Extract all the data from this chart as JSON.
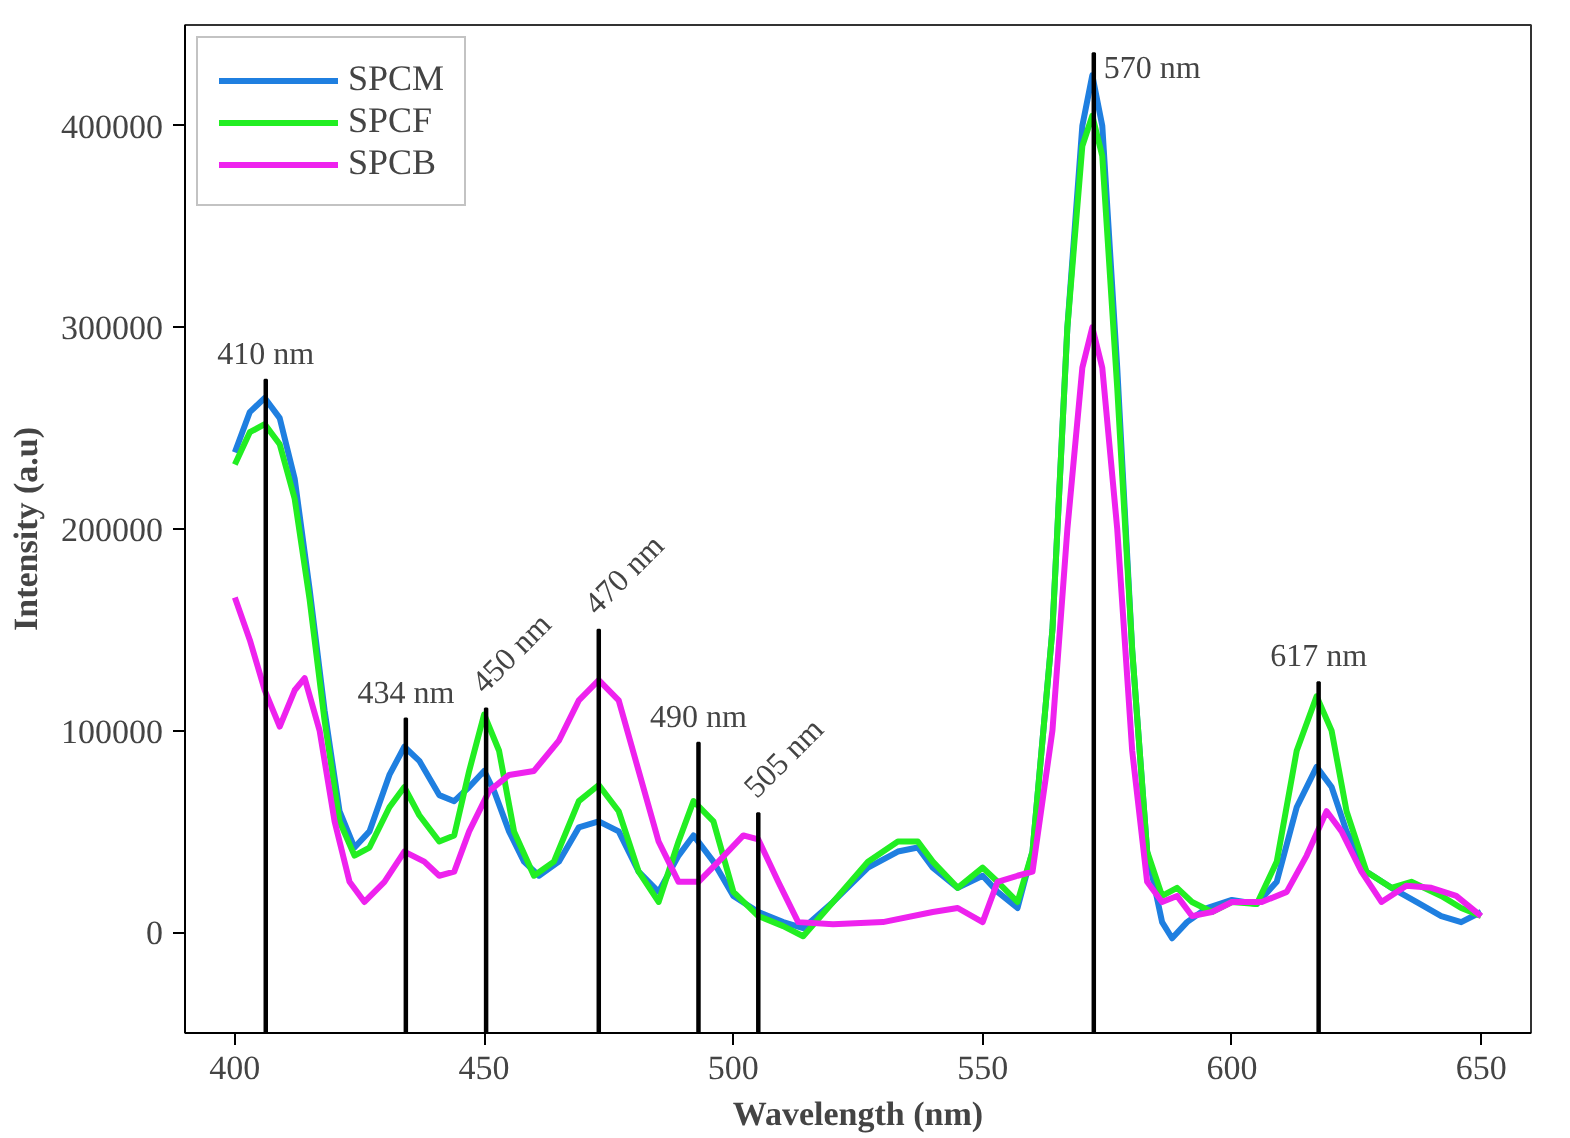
{
  "chart_data": {
    "type": "line",
    "xlabel": "Wavelength (nm)",
    "ylabel": "Intensity (a.u)",
    "xlim": [
      390,
      660
    ],
    "ylim": [
      -50000,
      450000
    ],
    "xticks": [
      400,
      450,
      500,
      550,
      600,
      650
    ],
    "yticks": [
      0,
      100000,
      200000,
      300000,
      400000
    ],
    "grid": false,
    "legend": "top left",
    "line_style": "solid",
    "marker": "none",
    "series": [
      {
        "name": "SPCM",
        "color": "#1f7fe0",
        "x": [
          400,
          403,
          406,
          409,
          412,
          415,
          418,
          421,
          424,
          427,
          431,
          434,
          437,
          441,
          444,
          447,
          450,
          452,
          455,
          458,
          461,
          465,
          469,
          473,
          477,
          481,
          485,
          489,
          492,
          496,
          500,
          505,
          510,
          514,
          520,
          527,
          533,
          537,
          540,
          545,
          550,
          553,
          557,
          560,
          564,
          567,
          570,
          572,
          574,
          577,
          580,
          583,
          586,
          588,
          591,
          595,
          600,
          605,
          609,
          613,
          617,
          620,
          623,
          627,
          632,
          637,
          642,
          646,
          650
        ],
        "values": [
          238000,
          258000,
          265000,
          255000,
          225000,
          170000,
          110000,
          60000,
          42000,
          50000,
          78000,
          92000,
          85000,
          68000,
          65000,
          72000,
          80000,
          70000,
          50000,
          35000,
          28000,
          35000,
          52000,
          55000,
          50000,
          30000,
          20000,
          38000,
          48000,
          35000,
          18000,
          10000,
          5000,
          2000,
          15000,
          32000,
          40000,
          42000,
          32000,
          22000,
          28000,
          20000,
          12000,
          40000,
          150000,
          300000,
          400000,
          425000,
          400000,
          280000,
          140000,
          40000,
          5000,
          -3000,
          5000,
          12000,
          16000,
          14000,
          25000,
          62000,
          82000,
          72000,
          50000,
          30000,
          22000,
          15000,
          8000,
          5000,
          10000
        ]
      },
      {
        "name": "SPCF",
        "color": "#22ee22",
        "x": [
          400,
          403,
          406,
          409,
          412,
          415,
          418,
          421,
          424,
          427,
          431,
          434,
          437,
          441,
          444,
          447,
          450,
          453,
          456,
          460,
          464,
          469,
          473,
          477,
          481,
          485,
          489,
          492,
          496,
          500,
          505,
          510,
          514,
          520,
          527,
          533,
          537,
          540,
          545,
          550,
          553,
          557,
          560,
          564,
          567,
          570,
          572,
          574,
          577,
          580,
          583,
          586,
          589,
          592,
          596,
          600,
          605,
          609,
          613,
          617,
          620,
          623,
          627,
          632,
          636,
          642,
          646,
          650
        ],
        "values": [
          232000,
          248000,
          252000,
          242000,
          215000,
          165000,
          105000,
          55000,
          38000,
          42000,
          62000,
          72000,
          58000,
          45000,
          48000,
          80000,
          108000,
          90000,
          50000,
          28000,
          35000,
          65000,
          73000,
          60000,
          30000,
          15000,
          45000,
          65000,
          55000,
          20000,
          8000,
          3000,
          -2000,
          15000,
          35000,
          45000,
          45000,
          35000,
          22000,
          32000,
          25000,
          15000,
          40000,
          150000,
          300000,
          390000,
          405000,
          385000,
          270000,
          140000,
          40000,
          18000,
          22000,
          15000,
          10000,
          15000,
          14000,
          35000,
          90000,
          117000,
          100000,
          60000,
          30000,
          22000,
          25000,
          18000,
          12000,
          8000
        ]
      },
      {
        "name": "SPCB",
        "color": "#ee22ee",
        "x": [
          400,
          403,
          406,
          409,
          412,
          414,
          417,
          420,
          423,
          426,
          430,
          434,
          438,
          441,
          444,
          447,
          451,
          455,
          460,
          465,
          469,
          473,
          477,
          481,
          485,
          489,
          493,
          497,
          502,
          505,
          509,
          513,
          520,
          530,
          540,
          545,
          550,
          553,
          557,
          560,
          564,
          567,
          570,
          572,
          574,
          577,
          580,
          583,
          586,
          589,
          592,
          596,
          600,
          606,
          611,
          615,
          619,
          622,
          626,
          630,
          635,
          640,
          645,
          650
        ],
        "values": [
          166000,
          145000,
          120000,
          102000,
          120000,
          126000,
          100000,
          55000,
          25000,
          15000,
          25000,
          40000,
          35000,
          28000,
          30000,
          50000,
          70000,
          78000,
          80000,
          95000,
          115000,
          125000,
          115000,
          80000,
          45000,
          25000,
          25000,
          35000,
          48000,
          46000,
          25000,
          5000,
          4000,
          5000,
          10000,
          12000,
          5000,
          25000,
          28000,
          30000,
          100000,
          200000,
          280000,
          300000,
          280000,
          200000,
          90000,
          25000,
          15000,
          18000,
          8000,
          10000,
          15000,
          15000,
          20000,
          38000,
          60000,
          50000,
          30000,
          15000,
          23000,
          22000,
          18000,
          8000
        ]
      },
      {
        "type": "bar",
        "color": "#000000",
        "x": [
          406.2,
          434.3,
          450.4,
          473,
          493,
          505,
          572.3,
          617.4
        ],
        "base": [
          -50000,
          -50000,
          -50000,
          -50000,
          -50000,
          -50000,
          -50000,
          -50000
        ],
        "values": [
          324000,
          156000,
          161000,
          200000,
          144000,
          109000,
          486000,
          174000
        ]
      }
    ],
    "annotations": [
      {
        "text": "410 nm",
        "x": 406.2,
        "y": 274000
      },
      {
        "text": "434 nm",
        "x": 434.3,
        "y": 106000
      },
      {
        "text": "450 nm",
        "x": 450.4,
        "y": 111000
      },
      {
        "text": "470 nm",
        "x": 473,
        "y": 150000
      },
      {
        "text": "490 nm",
        "x": 493,
        "y": 94000
      },
      {
        "text": "505 nm",
        "x": 505,
        "y": 59000
      },
      {
        "text": "570 nm",
        "x": 572.3,
        "y": 436000
      },
      {
        "text": "617 nm",
        "x": 617.4,
        "y": 124000
      }
    ]
  }
}
